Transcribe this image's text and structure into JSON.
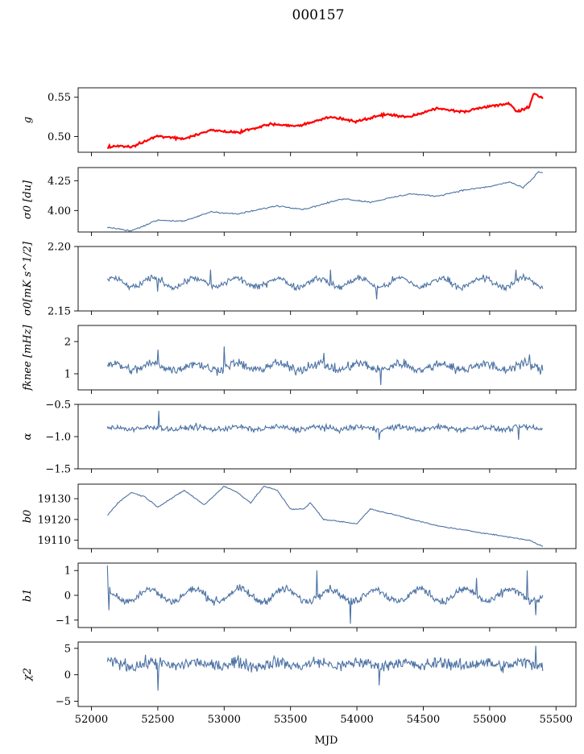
{
  "figure": {
    "title": "000157",
    "xlabel": "MJD",
    "xlim": [
      51900,
      55650
    ],
    "xticks": [
      52000,
      52500,
      53000,
      53500,
      54000,
      54500,
      55000,
      55500
    ],
    "series_color": "#4c72a4",
    "highlight_color": "#ff0000"
  },
  "chart_data": [
    {
      "type": "line",
      "panel": "g",
      "ylabel": "g",
      "ylim": [
        0.48,
        0.562
      ],
      "yticks": [
        0.5,
        0.55
      ],
      "ytick_labels": [
        "0.50",
        "0.55"
      ],
      "overlay_color": "#ff0000",
      "series": [
        {
          "shape": "drift_wave",
          "x_start": 52120,
          "x_end": 55400,
          "points": 420,
          "start": 0.489,
          "end": 0.534,
          "amplitude": 0.004,
          "period": 390,
          "phase": 52530,
          "noise": 0.001,
          "anchors": [
            [
              52120,
              0.486
            ],
            [
              52200,
              0.488
            ],
            [
              52300,
              0.487
            ],
            [
              52500,
              0.501
            ],
            [
              52700,
              0.497
            ],
            [
              52900,
              0.508
            ],
            [
              53100,
              0.505
            ],
            [
              53350,
              0.516
            ],
            [
              53550,
              0.513
            ],
            [
              53800,
              0.525
            ],
            [
              54000,
              0.519
            ],
            [
              54200,
              0.528
            ],
            [
              54400,
              0.525
            ],
            [
              54600,
              0.536
            ],
            [
              54800,
              0.532
            ],
            [
              55050,
              0.54
            ],
            [
              55150,
              0.542
            ],
            [
              55200,
              0.531
            ],
            [
              55300,
              0.538
            ],
            [
              55330,
              0.555
            ],
            [
              55400,
              0.548
            ]
          ]
        }
      ]
    },
    {
      "type": "line",
      "panel": "sigma_du",
      "ylabel": "σ0 [du]",
      "ylim": [
        3.82,
        4.36
      ],
      "yticks": [
        4.0,
        4.25
      ],
      "ytick_labels": [
        "4.00",
        "4.25"
      ],
      "series": [
        {
          "shape": "drift_wave",
          "x_start": 52120,
          "x_end": 55400,
          "points": 420,
          "start": 3.88,
          "end": 4.22,
          "amplitude": 0.02,
          "period": 390,
          "phase": 52530,
          "noise": 0.006,
          "anchors": [
            [
              52120,
              3.86
            ],
            [
              52300,
              3.83
            ],
            [
              52500,
              3.92
            ],
            [
              52700,
              3.91
            ],
            [
              52900,
              3.99
            ],
            [
              53100,
              3.97
            ],
            [
              53400,
              4.04
            ],
            [
              53600,
              4.01
            ],
            [
              53900,
              4.1
            ],
            [
              54100,
              4.07
            ],
            [
              54400,
              4.14
            ],
            [
              54600,
              4.12
            ],
            [
              54800,
              4.17
            ],
            [
              55000,
              4.2
            ],
            [
              55150,
              4.24
            ],
            [
              55250,
              4.19
            ],
            [
              55320,
              4.26
            ],
            [
              55360,
              4.32
            ],
            [
              55400,
              4.32
            ]
          ]
        }
      ]
    },
    {
      "type": "line",
      "panel": "sigma_mk",
      "ylabel": "σ0[mK s^1/2]",
      "ylim": [
        2.15,
        2.2
      ],
      "yticks": [
        2.15,
        2.2
      ],
      "ytick_labels": [
        "2.15",
        "2.20"
      ],
      "series": [
        {
          "shape": "noise",
          "x_start": 52120,
          "x_end": 55400,
          "points": 520,
          "mean": 2.172,
          "amplitude": 0.0035,
          "noise": 0.0025,
          "spikes": [
            [
              52500,
              2.165
            ],
            [
              52900,
              2.182
            ],
            [
              53800,
              2.182
            ],
            [
              54150,
              2.159
            ],
            [
              55200,
              2.182
            ]
          ]
        }
      ]
    },
    {
      "type": "line",
      "panel": "fknee",
      "ylabel": "fknee [mHz]",
      "ylim": [
        0.5,
        2.5
      ],
      "yticks": [
        1,
        2
      ],
      "ytick_labels": [
        "1",
        "2"
      ],
      "series": [
        {
          "shape": "noise",
          "x_start": 52120,
          "x_end": 55400,
          "points": 560,
          "mean": 1.22,
          "amplitude": 0.1,
          "noise": 0.14,
          "spikes": [
            [
              52500,
              1.75
            ],
            [
              53000,
              1.85
            ],
            [
              53750,
              1.65
            ],
            [
              54180,
              0.65
            ],
            [
              55300,
              1.6
            ]
          ]
        }
      ]
    },
    {
      "type": "line",
      "panel": "alpha",
      "ylabel": "α",
      "ylim": [
        -1.5,
        -0.5
      ],
      "yticks": [
        -1.5,
        -1.0,
        -0.5
      ],
      "ytick_labels": [
        "−1.5",
        "−1.0",
        "−0.5"
      ],
      "series": [
        {
          "shape": "noise",
          "x_start": 52120,
          "x_end": 55400,
          "points": 560,
          "mean": -0.87,
          "amplitude": 0.02,
          "noise": 0.045,
          "spikes": [
            [
              52510,
              -0.6
            ],
            [
              54170,
              -0.53
            ],
            [
              54170,
              -1.05
            ],
            [
              55220,
              -1.05
            ]
          ]
        }
      ]
    },
    {
      "type": "line",
      "panel": "b0",
      "ylabel": "b0",
      "ylim": [
        19106,
        19137
      ],
      "yticks": [
        19110,
        19120,
        19130
      ],
      "ytick_labels": [
        "19110",
        "19120",
        "19130"
      ],
      "series": [
        {
          "shape": "anchors",
          "x_start": 52120,
          "x_end": 55400,
          "points": 460,
          "noise": 0.25,
          "anchors": [
            [
              52120,
              19122
            ],
            [
              52200,
              19128
            ],
            [
              52300,
              19133
            ],
            [
              52400,
              19131
            ],
            [
              52500,
              19126
            ],
            [
              52700,
              19134
            ],
            [
              52850,
              19127
            ],
            [
              53000,
              19136
            ],
            [
              53100,
              19133
            ],
            [
              53200,
              19128
            ],
            [
              53300,
              19136
            ],
            [
              53400,
              19134
            ],
            [
              53500,
              19125
            ],
            [
              53600,
              19125
            ],
            [
              53650,
              19128
            ],
            [
              53750,
              19120
            ],
            [
              54000,
              19118
            ],
            [
              54100,
              19125
            ],
            [
              54300,
              19122
            ],
            [
              54600,
              19117
            ],
            [
              54900,
              19114
            ],
            [
              55100,
              19112
            ],
            [
              55300,
              19110
            ],
            [
              55400,
              19107
            ]
          ]
        }
      ]
    },
    {
      "type": "line",
      "panel": "b1",
      "ylabel": "b1",
      "ylim": [
        -1.3,
        1.3
      ],
      "yticks": [
        -1,
        0,
        1
      ],
      "ytick_labels": [
        "−1",
        "0",
        "1"
      ],
      "series": [
        {
          "shape": "wave_noise",
          "x_start": 52120,
          "x_end": 55400,
          "points": 560,
          "mean": 0.0,
          "amplitude": 0.25,
          "period": 340,
          "phase": 52350,
          "noise": 0.15,
          "spikes": [
            [
              52120,
              1.2
            ],
            [
              52130,
              -0.6
            ],
            [
              53700,
              1.0
            ],
            [
              53950,
              -1.15
            ],
            [
              54900,
              0.7
            ],
            [
              55280,
              1.0
            ],
            [
              55350,
              -0.8
            ]
          ]
        }
      ]
    },
    {
      "type": "line",
      "panel": "chi2",
      "ylabel": "χ2",
      "ylim": [
        -6,
        6.2
      ],
      "yticks": [
        -5,
        0,
        5
      ],
      "ytick_labels": [
        "−5",
        "0",
        "5"
      ],
      "series": [
        {
          "shape": "noise",
          "x_start": 52120,
          "x_end": 55400,
          "points": 560,
          "mean": 2.0,
          "amplitude": 0.4,
          "noise": 1.1,
          "spikes": [
            [
              52500,
              -3.0
            ],
            [
              54170,
              -2.0
            ],
            [
              55350,
              5.5
            ]
          ]
        }
      ]
    }
  ]
}
